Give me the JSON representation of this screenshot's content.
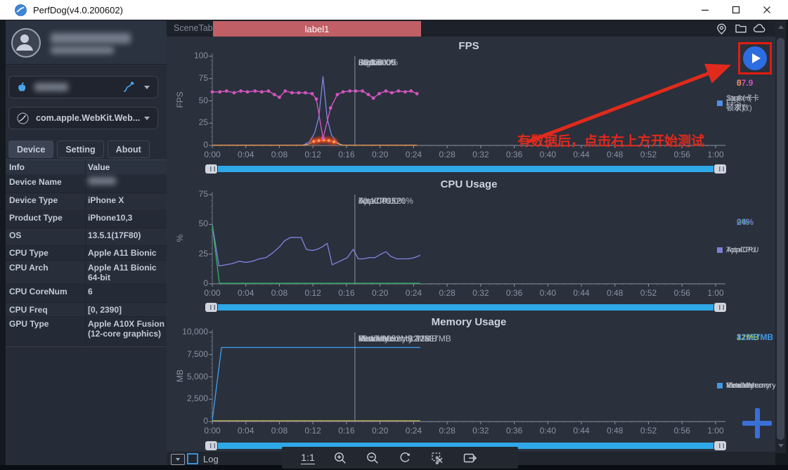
{
  "window": {
    "title": "PerfDog(v4.0.200602)",
    "controls": [
      {
        "name": "minimize-button"
      },
      {
        "name": "maximize-button"
      },
      {
        "name": "close-button"
      }
    ]
  },
  "sidebar": {
    "user": {
      "avatar_icon": "user-avatar-icon",
      "name_redacted": true
    },
    "device_dropdown": {
      "icon": "apple-icon",
      "value_redacted": true,
      "usb_icon": "usb-cable-icon"
    },
    "app_dropdown": {
      "icon": "app-globe-icon",
      "value": "com.apple.WebKit.Web..."
    },
    "tabs": [
      {
        "label": "Device",
        "active": true
      },
      {
        "label": "Setting",
        "active": false
      },
      {
        "label": "About",
        "active": false
      }
    ],
    "table": {
      "headers": [
        "Info",
        "Value"
      ],
      "rows": [
        {
          "info": "Device Name",
          "value": "",
          "redacted": true
        },
        {
          "info": "Device Type",
          "value": "iPhone X"
        },
        {
          "info": "Product Type",
          "value": "iPhone10,3"
        },
        {
          "info": "OS",
          "value": "13.5.1(17F80)"
        },
        {
          "info": "CPU Type",
          "value": "Apple A11 Bionic"
        },
        {
          "info": "CPU Arch",
          "value": "Apple A11 Bionic 64-bit"
        },
        {
          "info": "CPU CoreNum",
          "value": "6"
        },
        {
          "info": "CPU Freq",
          "value": "[0, 2390]"
        },
        {
          "info": "GPU Type",
          "value": "Apple A10X Fusion (12-core graphics)"
        }
      ]
    }
  },
  "scene_tab_bar": {
    "label": "SceneTab",
    "tab": "label1",
    "tab_color": "#c05f66",
    "icons": [
      "location-icon",
      "folder-icon",
      "cloud-icon"
    ]
  },
  "annotation": {
    "text": "有数据后，点击右上方开始测试",
    "color": "#e02a1c",
    "play_button": "start-test-play-button"
  },
  "bottom_bar": {
    "log_label": "Log",
    "ratio_label": "1:1",
    "tools": [
      "ratio-1-1-button",
      "zoom-in-button",
      "zoom-out-button",
      "rotate-button",
      "clip-button",
      "export-button"
    ]
  },
  "time_axis": [
    "0:00",
    "0:04",
    "0:08",
    "0:12",
    "0:16",
    "0:20",
    "0:24",
    "0:28",
    "0:32",
    "0:36",
    "0:40",
    "0:44",
    "0:48",
    "0:52",
    "0:56",
    "1:00"
  ],
  "chart_data": [
    {
      "id": "fps",
      "type": "line",
      "title": "FPS",
      "ylabel": "FPS",
      "ylim": [
        0,
        100
      ],
      "yticks": [
        0,
        25,
        50,
        75,
        100
      ],
      "ytick_labels": [
        "0",
        "25",
        "50",
        "75",
        "100"
      ],
      "xlim_minutes": [
        0,
        60
      ],
      "grid": false,
      "cursor": {
        "x_min": 17,
        "time": "00:17:005",
        "lines": [
          "FPS:60",
          "Jank:0",
          "BigJank:0",
          "Stutter:0%"
        ]
      },
      "current_values": [
        {
          "text": "57.9",
          "color": "#d254be"
        },
        {
          "text": "0",
          "color": "#e6953f"
        }
      ],
      "legend": [
        {
          "label": "FPS",
          "color": "#d254be"
        },
        {
          "label": "Jank(卡顿次数)",
          "color": "#e6953f"
        },
        {
          "label": "Stutter(卡顿率)",
          "color": "#4e8fe6"
        }
      ],
      "series": [
        {
          "name": "Stutter",
          "color": "#7b82d8",
          "points": [
            [
              0,
              0.3
            ],
            [
              10.8,
              0.3
            ],
            [
              11.6,
              4
            ],
            [
              12.2,
              14
            ],
            [
              12.7,
              32
            ],
            [
              13.2,
              77
            ],
            [
              13.7,
              30
            ],
            [
              14.2,
              12
            ],
            [
              14.8,
              4
            ],
            [
              15.4,
              0.3
            ],
            [
              24.4,
              0.3
            ]
          ]
        },
        {
          "name": "Jank",
          "color": "#e6953f",
          "glow": [
            [
              12.1,
              4.5
            ],
            [
              12.7,
              5.5
            ],
            [
              13.3,
              6
            ],
            [
              13.9,
              5.5
            ],
            [
              14.5,
              4
            ]
          ],
          "points": [
            [
              0,
              0.2
            ],
            [
              10.9,
              0.2
            ],
            [
              11.5,
              1.5
            ],
            [
              12.1,
              4.5
            ],
            [
              12.7,
              5.5
            ],
            [
              13.3,
              6
            ],
            [
              13.9,
              5.5
            ],
            [
              14.5,
              4
            ],
            [
              15.1,
              1.5
            ],
            [
              15.6,
              0.2
            ],
            [
              24.4,
              0.2
            ]
          ]
        },
        {
          "name": "FPS",
          "color": "#d254be",
          "markers": true,
          "points": [
            [
              0,
              60
            ],
            [
              0.9,
              60
            ],
            [
              1.7,
              61
            ],
            [
              2.6,
              59
            ],
            [
              3.4,
              61
            ],
            [
              4.2,
              60
            ],
            [
              5.1,
              61
            ],
            [
              5.9,
              60
            ],
            [
              6.7,
              61
            ],
            [
              7.4,
              57
            ],
            [
              8.0,
              54
            ],
            [
              8.7,
              61
            ],
            [
              9.5,
              59
            ],
            [
              10.3,
              59
            ],
            [
              11.1,
              59
            ],
            [
              11.9,
              58
            ],
            [
              12.4,
              52
            ],
            [
              13.2,
              8
            ],
            [
              14.1,
              42
            ],
            [
              14.9,
              57
            ],
            [
              15.6,
              60
            ],
            [
              16.4,
              61
            ],
            [
              17.1,
              61
            ],
            [
              17.9,
              61
            ],
            [
              18.6,
              57
            ],
            [
              19.2,
              53
            ],
            [
              19.9,
              58
            ],
            [
              20.7,
              61
            ],
            [
              21.4,
              59
            ],
            [
              22.2,
              61
            ],
            [
              23.0,
              60
            ],
            [
              23.7,
              61
            ],
            [
              24.4,
              58
            ]
          ]
        }
      ]
    },
    {
      "id": "cpu",
      "type": "line",
      "title": "CPU Usage",
      "ylabel": "%",
      "ylim": [
        0,
        75
      ],
      "yticks": [
        0,
        25,
        50,
        75
      ],
      "ytick_labels": [
        "0",
        "25",
        "50",
        "75"
      ],
      "xlim_minutes": [
        0,
        60
      ],
      "grid": false,
      "cursor": {
        "x_min": 17,
        "time": "00:17:005",
        "lines": [
          "AppCPU:0%",
          "TotalCPU:20%"
        ]
      },
      "current_values": [
        {
          "text": "0%",
          "color": "#2fae60"
        },
        {
          "text": "24%",
          "color": "#7b7fd6"
        }
      ],
      "legend": [
        {
          "label": "AppCPU",
          "color": "#2fae60"
        },
        {
          "label": "TotalCPU",
          "color": "#7b7fd6"
        }
      ],
      "series": [
        {
          "name": "TotalCPU",
          "color": "#7b7fd6",
          "points": [
            [
              0,
              50
            ],
            [
              0.8,
              15
            ],
            [
              1.6,
              16
            ],
            [
              2.4,
              17
            ],
            [
              3.2,
              19
            ],
            [
              4.0,
              18
            ],
            [
              4.8,
              19
            ],
            [
              5.6,
              21
            ],
            [
              6.4,
              22
            ],
            [
              7.2,
              26
            ],
            [
              8.0,
              31
            ],
            [
              8.6,
              36
            ],
            [
              9.3,
              39
            ],
            [
              10.0,
              39
            ],
            [
              10.6,
              39
            ],
            [
              11.2,
              29
            ],
            [
              11.9,
              28
            ],
            [
              12.5,
              29
            ],
            [
              13.1,
              31
            ],
            [
              13.7,
              34
            ],
            [
              14.3,
              16
            ],
            [
              14.9,
              18
            ],
            [
              15.5,
              20
            ],
            [
              16.1,
              22
            ],
            [
              16.8,
              29
            ],
            [
              17.4,
              21
            ],
            [
              18.0,
              21
            ],
            [
              18.7,
              22
            ],
            [
              19.4,
              22
            ],
            [
              20.1,
              25
            ],
            [
              20.7,
              27
            ],
            [
              21.3,
              23
            ],
            [
              22.0,
              21
            ],
            [
              22.7,
              21
            ],
            [
              23.4,
              21
            ],
            [
              24.1,
              22
            ],
            [
              24.8,
              24
            ]
          ]
        },
        {
          "name": "AppCPU",
          "color": "#2fae60",
          "points": [
            [
              0,
              49
            ],
            [
              0.85,
              0.5
            ],
            [
              24.8,
              0.5
            ]
          ]
        }
      ]
    },
    {
      "id": "memory",
      "type": "line",
      "title": "Memory Usage",
      "ylabel": "MB",
      "ylim": [
        0,
        10000
      ],
      "yticks": [
        0,
        2500,
        5000,
        7500,
        10000
      ],
      "ytick_labels": [
        "0",
        "2,500",
        "5,000",
        "7,500",
        "10,000"
      ],
      "xlim_minutes": [
        0,
        60
      ],
      "grid": false,
      "cursor": {
        "x_min": 17,
        "time": "00:17:005",
        "lines": [
          "Memory:32MB",
          "XcodeMemory:32MB",
          "RealMemory:12MB",
          "VirtualMemory:41337MB"
        ]
      },
      "current_values": [
        {
          "text": "32MB",
          "color": "#d254be"
        },
        {
          "text": "32MB",
          "color": "#9a55d6"
        },
        {
          "text": "12MB",
          "color": "#a9c93a"
        },
        {
          "text": "41337MB",
          "color": "#3f9ae6"
        }
      ],
      "legend": [
        {
          "label": "Memory",
          "color": "#d254be"
        },
        {
          "label": "XcodeMemory",
          "color": "#9a55d6"
        },
        {
          "label": "RealMemory",
          "color": "#a9c93a"
        },
        {
          "label": "VirtualMemory",
          "color": "#3f9ae6"
        }
      ],
      "series": [
        {
          "name": "Memory",
          "color": "#d254be",
          "points": [
            [
              0,
              35
            ],
            [
              24.8,
              35
            ]
          ]
        },
        {
          "name": "XcodeMemory",
          "color": "#9a55d6",
          "points": [
            [
              0,
              35
            ],
            [
              24.8,
              35
            ]
          ]
        },
        {
          "name": "VirtualMemory",
          "color": "#3f9ae6",
          "points": [
            [
              0,
              150
            ],
            [
              1.1,
              8300
            ],
            [
              24.8,
              8300
            ]
          ]
        },
        {
          "name": "RealMemory",
          "color": "#a9c93a",
          "points": [
            [
              0,
              90
            ],
            [
              24.8,
              90
            ]
          ]
        }
      ]
    }
  ]
}
